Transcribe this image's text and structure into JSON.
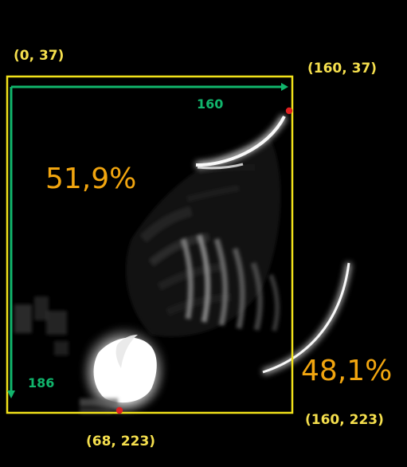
{
  "colors": {
    "frame": "#f2e21a",
    "label_yellow": "#f5df4d",
    "label_orange": "#f1a50f",
    "label_green": "#11b56c",
    "point": "#e02020",
    "background": "#000000"
  },
  "annotations": {
    "top_left_coord": "(0, 37)",
    "top_right_coord": "(160, 37)",
    "bottom_point_coord": "(68, 223)",
    "bottom_right_coord": "(160, 223)",
    "width_label": "160",
    "height_label": "186",
    "left_region_percent": "51,9%",
    "right_region_percent": "48,1%"
  }
}
